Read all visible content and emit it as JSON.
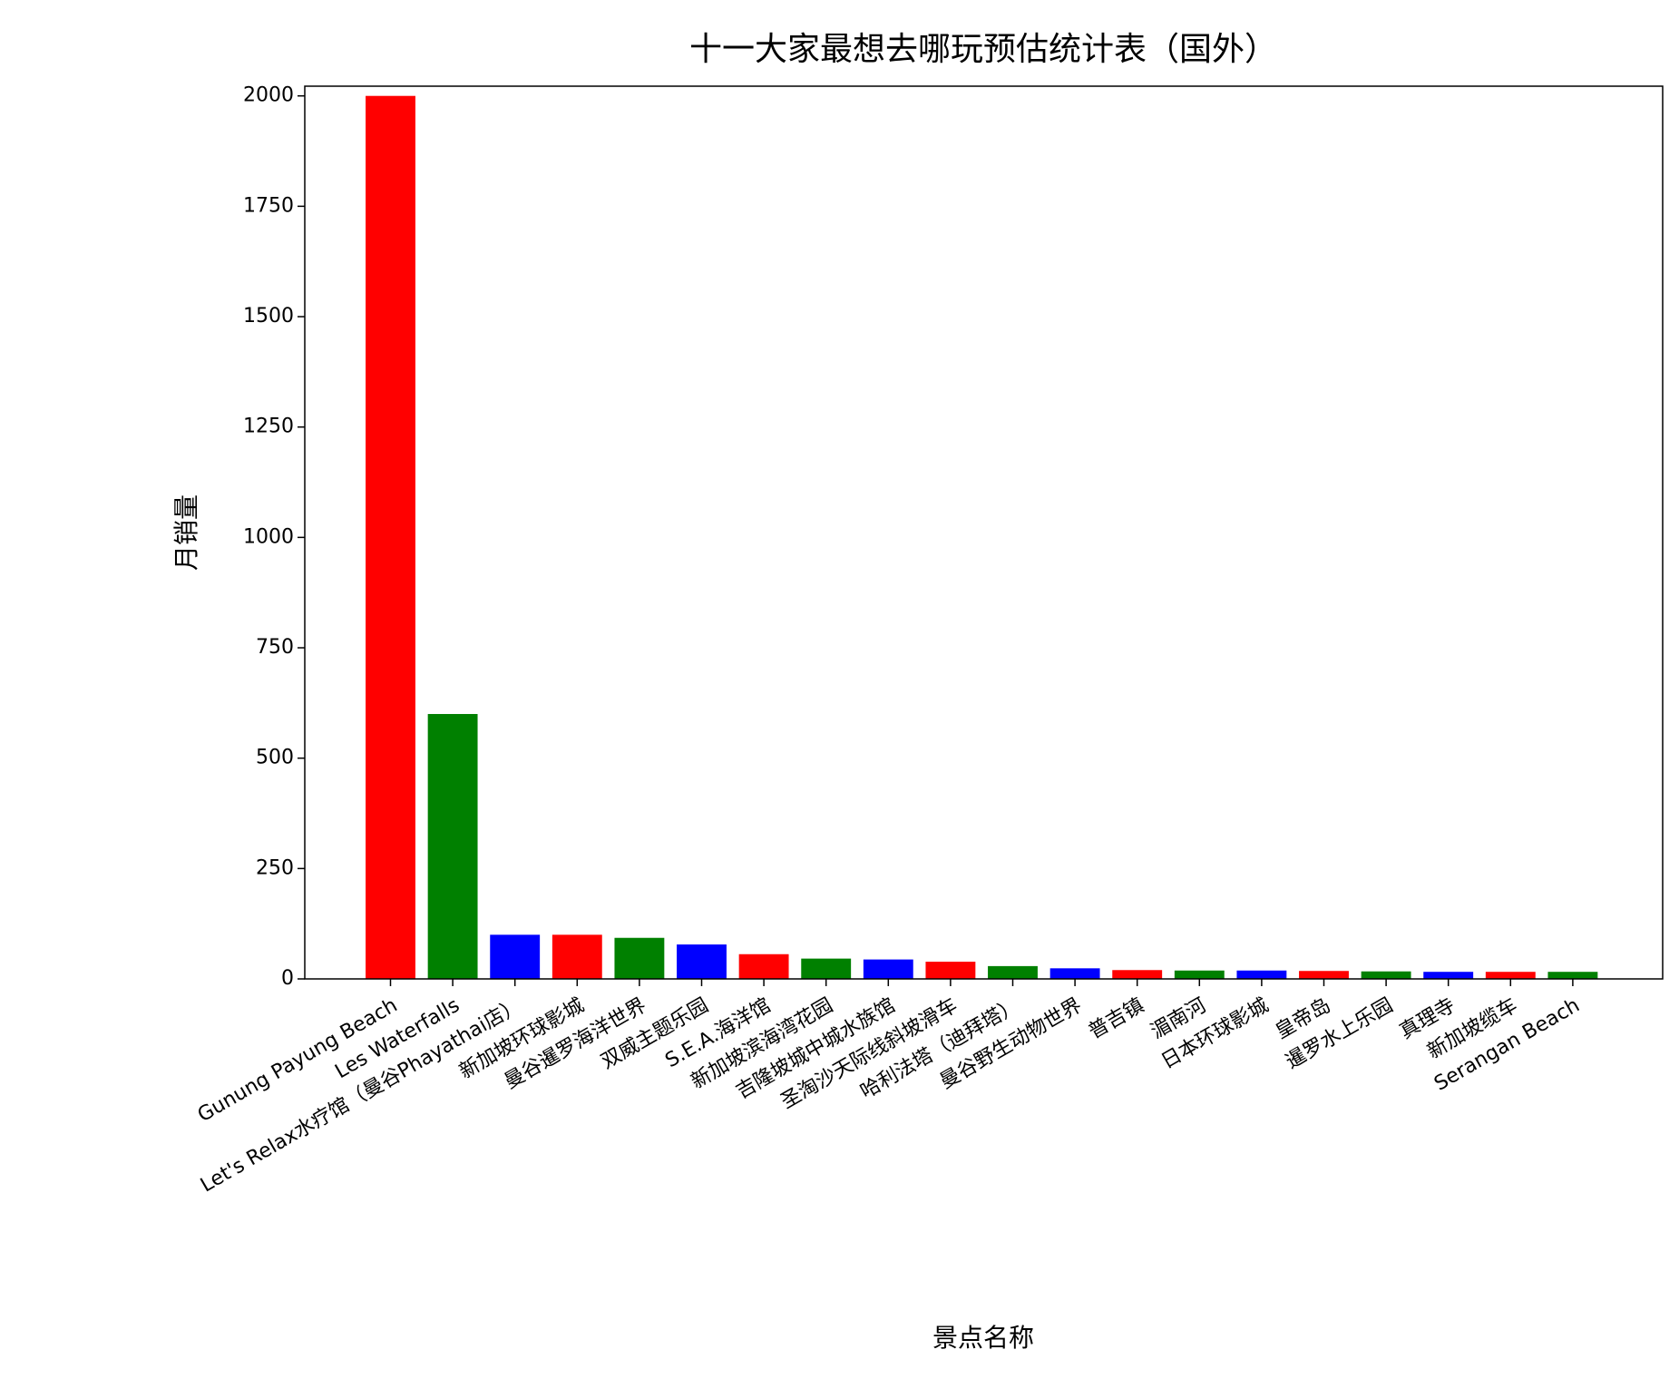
{
  "chart_data": {
    "type": "bar",
    "title": "十一大家最想去哪玩预估统计表（国外）",
    "x_label": "景点名称",
    "y_label": "月销量",
    "categories": [
      "Gunung Payung Beach",
      "Les Waterfalls",
      "Let's Relax水疗馆（曼谷Phayathai店）",
      "新加坡环球影城",
      "曼谷暹罗海洋世界",
      "双威主题乐园",
      "S.E.A.海洋馆",
      "新加坡滨海湾花园",
      "吉隆坡城中城水族馆",
      "圣淘沙天际线斜坡滑车",
      "哈利法塔（迪拜塔）",
      "曼谷野生动物世界",
      "普吉镇",
      "湄南河",
      "日本环球影城",
      "皇帝岛",
      "暹罗水上乐园",
      "真理寺",
      "新加坡缆车",
      "Serangan Beach"
    ],
    "values": [
      2000,
      600,
      100,
      100,
      93,
      78,
      56,
      46,
      44,
      39,
      29,
      24,
      20,
      19,
      19,
      18,
      17,
      16,
      16,
      16
    ],
    "colors": [
      "red",
      "green",
      "blue"
    ],
    "ylim": [
      0,
      2022
    ],
    "yticks": [
      0,
      250,
      500,
      750,
      1000,
      1250,
      1500,
      1750,
      2000
    ]
  }
}
